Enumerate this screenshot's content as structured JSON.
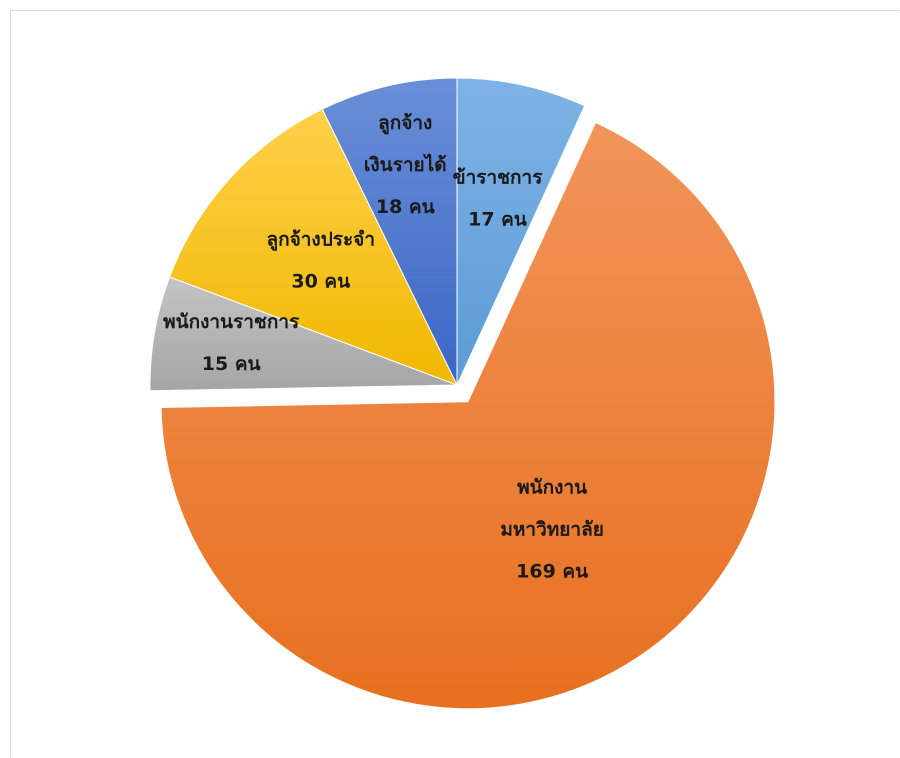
{
  "chart_data": {
    "type": "pie",
    "title": "",
    "slices": [
      {
        "lines": [
          "ข้าราชการ",
          "17 คน"
        ],
        "value": 17,
        "exploded": false,
        "color_light": "#7fb3e6",
        "color_dark": "#5b9bd5"
      },
      {
        "lines": [
          "พนักงาน",
          "มหาวิทยาลัย",
          "169 คน"
        ],
        "value": 169,
        "exploded": true,
        "color_light": "#f2945a",
        "color_dark": "#e8701f"
      },
      {
        "lines": [
          "พนักงานราชการ",
          "15 คน"
        ],
        "value": 15,
        "exploded": false,
        "color_light": "#c4c4c4",
        "color_dark": "#a5a5a5"
      },
      {
        "lines": [
          "ลูกจ้างประจำ",
          "30 คน"
        ],
        "value": 30,
        "exploded": false,
        "color_light": "#ffd04a",
        "color_dark": "#f0b800"
      },
      {
        "lines": [
          "ลูกจ้าง",
          "เงินรายได้",
          "18 คน"
        ],
        "value": 18,
        "exploded": false,
        "color_light": "#6a8fd8",
        "color_dark": "#3a66c4"
      }
    ]
  }
}
